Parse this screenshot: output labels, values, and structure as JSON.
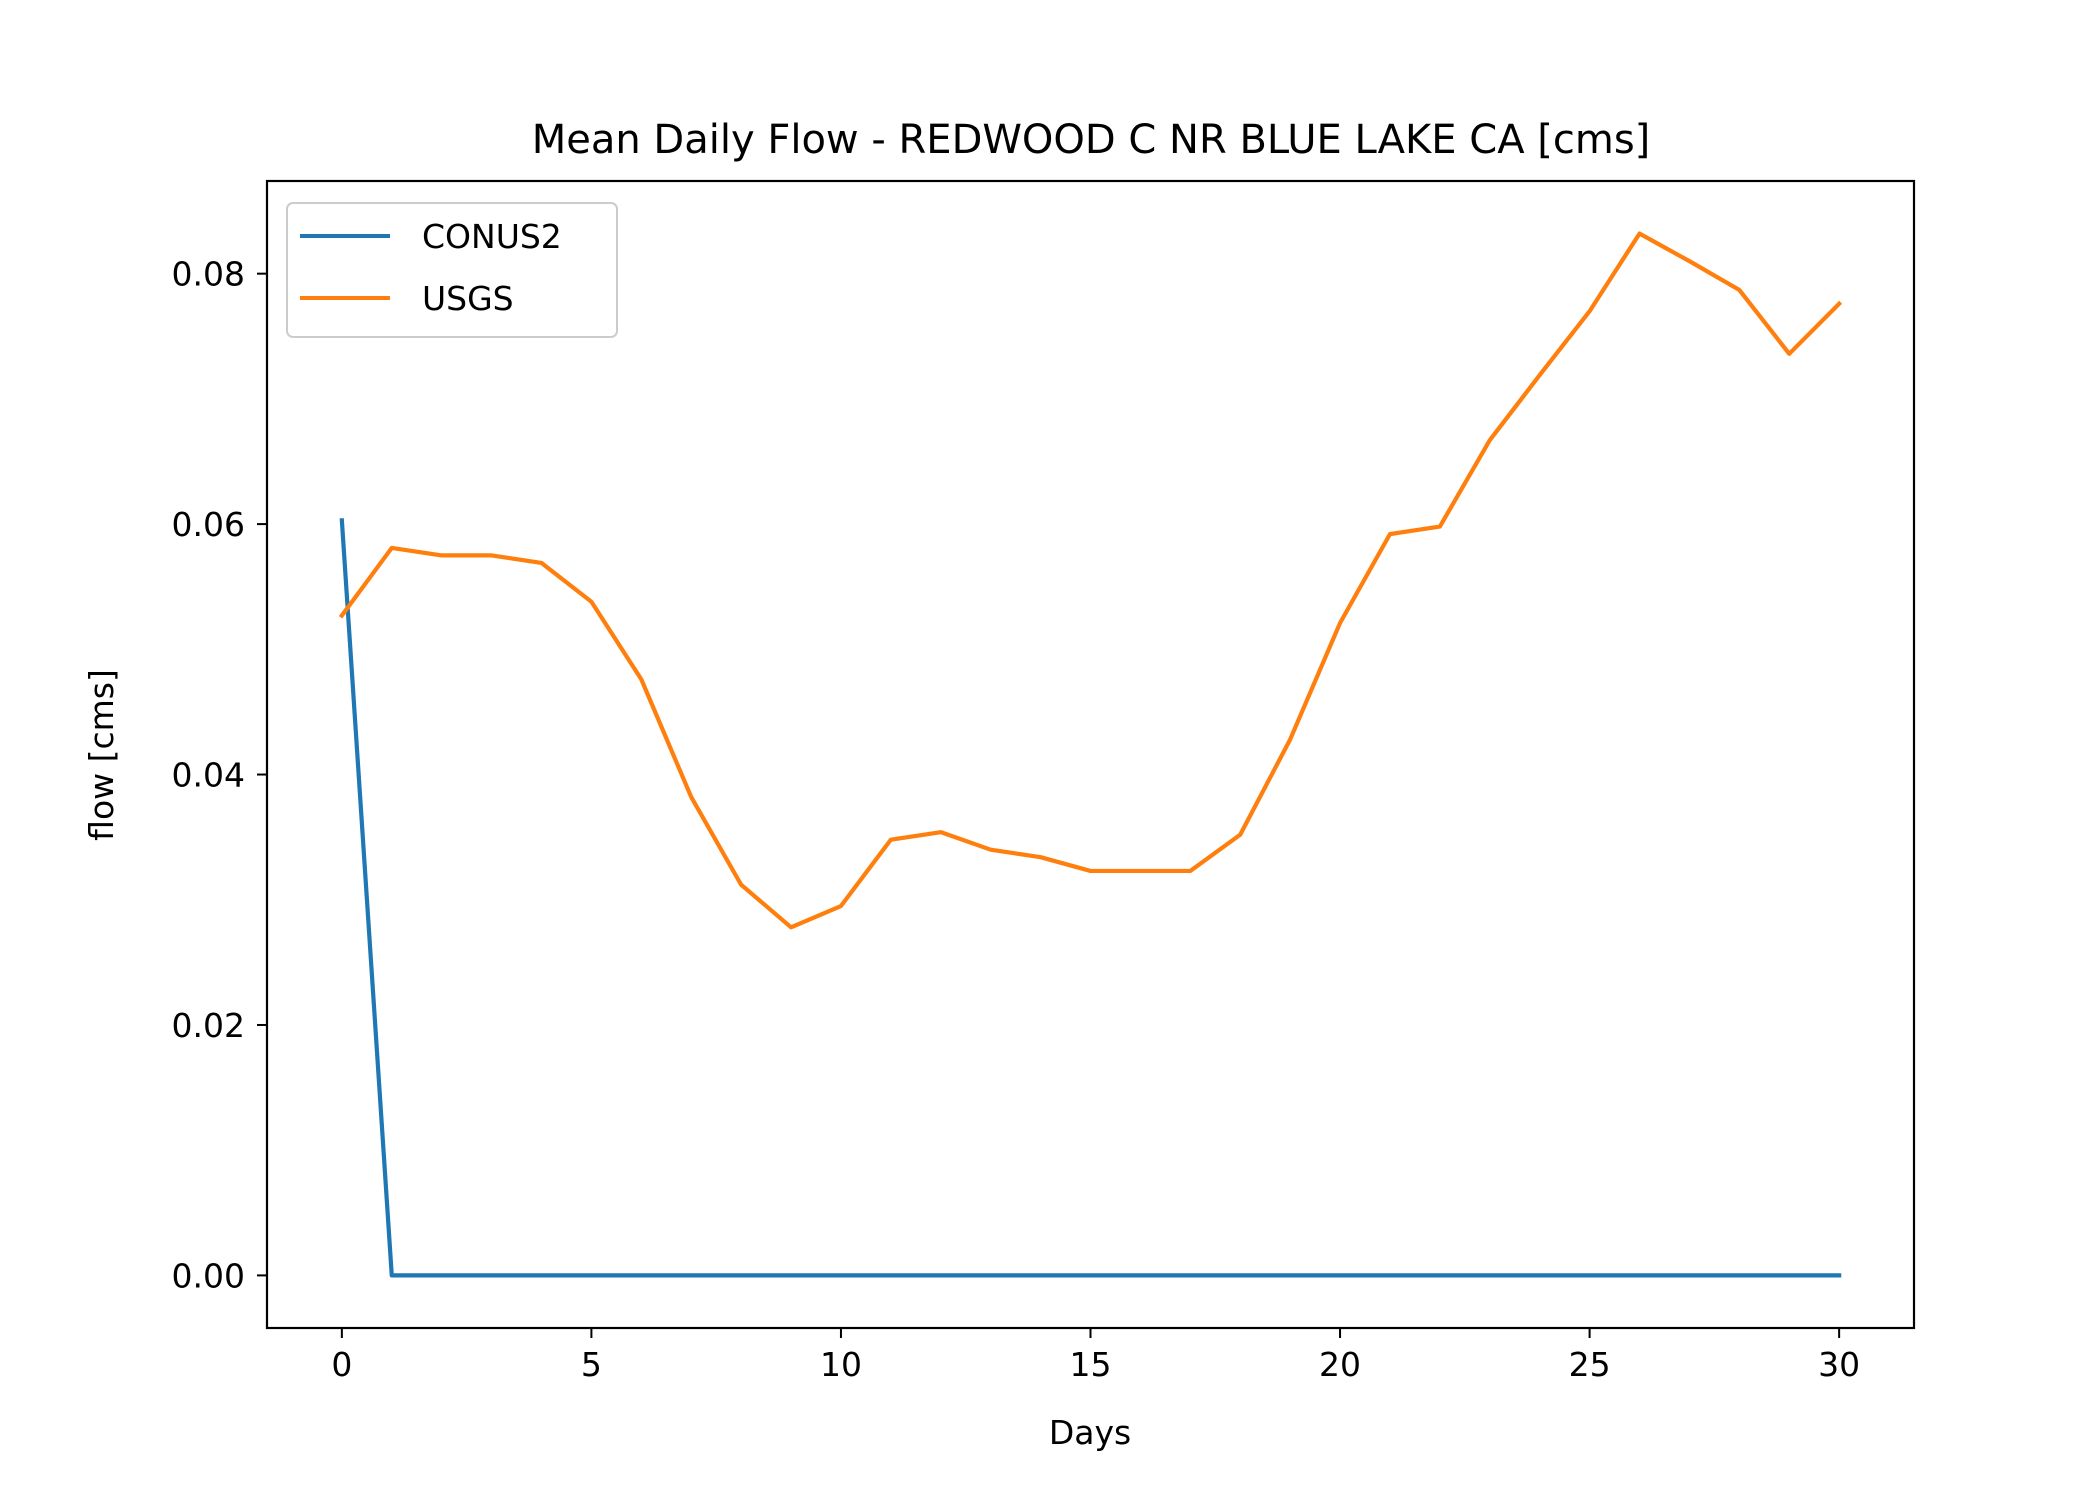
{
  "chart_data": {
    "type": "line",
    "title": "Mean Daily Flow - REDWOOD C NR BLUE LAKE CA [cms]",
    "xlabel": "Days",
    "ylabel": "flow [cms]",
    "xlim": [
      -1.5,
      31.5
    ],
    "ylim": [
      -0.0042,
      0.0874
    ],
    "x_ticks": [
      0,
      5,
      10,
      15,
      20,
      25,
      30
    ],
    "y_ticks": [
      0.0,
      0.02,
      0.04,
      0.06,
      0.08
    ],
    "x_tick_labels": [
      "0",
      "5",
      "10",
      "15",
      "20",
      "25",
      "30"
    ],
    "y_tick_labels": [
      "0.00",
      "0.02",
      "0.04",
      "0.06",
      "0.08"
    ],
    "grid": false,
    "legend_position": "upper-left",
    "x": [
      0,
      1,
      2,
      3,
      4,
      5,
      6,
      7,
      8,
      9,
      10,
      11,
      12,
      13,
      14,
      15,
      16,
      17,
      18,
      19,
      20,
      21,
      22,
      23,
      24,
      25,
      26,
      27,
      28,
      29,
      30
    ],
    "series": [
      {
        "name": "CONUS2",
        "color": "#1f77b4",
        "values": [
          0.0603,
          0.0,
          0.0,
          0.0,
          0.0,
          0.0,
          0.0,
          0.0,
          0.0,
          0.0,
          0.0,
          0.0,
          0.0,
          0.0,
          0.0,
          0.0,
          0.0,
          0.0,
          0.0,
          0.0,
          0.0,
          0.0,
          0.0,
          0.0,
          0.0,
          0.0,
          0.0,
          0.0,
          0.0,
          0.0,
          0.0
        ]
      },
      {
        "name": "USGS",
        "color": "#ff7f0e",
        "values": [
          0.0527,
          0.0581,
          0.0575,
          0.0575,
          0.0569,
          0.0538,
          0.0476,
          0.0382,
          0.0312,
          0.0278,
          0.0295,
          0.0348,
          0.0354,
          0.034,
          0.0334,
          0.0323,
          0.0323,
          0.0323,
          0.0352,
          0.0428,
          0.0521,
          0.0592,
          0.0598,
          0.0667,
          0.0719,
          0.077,
          0.0832,
          0.081,
          0.0787,
          0.0736,
          0.0776
        ]
      }
    ]
  }
}
